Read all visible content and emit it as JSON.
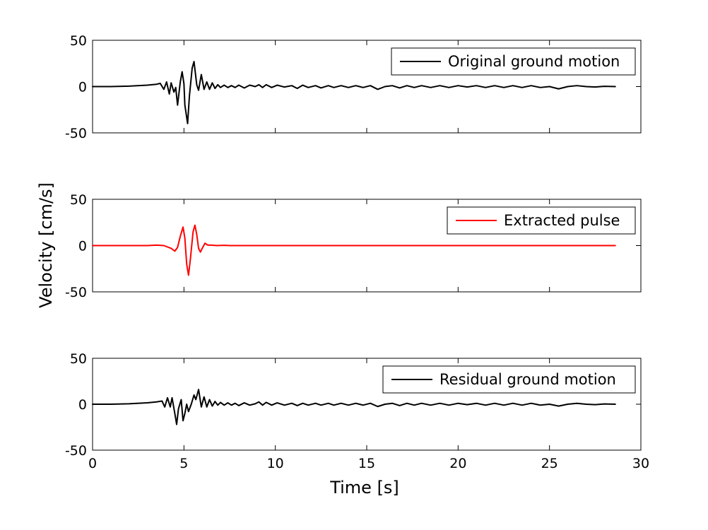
{
  "chart_data": {
    "type": "line",
    "shared_xlabel": "Time [s]",
    "shared_ylabel": "Velocity [cm/s]",
    "xlim": [
      0,
      30
    ],
    "xticks": [
      0,
      5,
      10,
      15,
      20,
      25,
      30
    ],
    "ylim": [
      -50,
      50
    ],
    "yticks": [
      -50,
      0,
      50
    ],
    "grid": false,
    "legend_position": "top-right",
    "panels": [
      {
        "series": [
          {
            "name": "Original ground motion",
            "color": "#000000",
            "points": [
              [
                0,
                0
              ],
              [
                1,
                0
              ],
              [
                2,
                0.5
              ],
              [
                3,
                1.5
              ],
              [
                3.5,
                2.5
              ],
              [
                3.7,
                3.5
              ],
              [
                3.9,
                -3
              ],
              [
                4.05,
                5
              ],
              [
                4.2,
                -8
              ],
              [
                4.3,
                4
              ],
              [
                4.45,
                -6
              ],
              [
                4.55,
                -1
              ],
              [
                4.65,
                -20
              ],
              [
                4.8,
                5
              ],
              [
                4.9,
                16
              ],
              [
                5.0,
                3
              ],
              [
                5.05,
                -20
              ],
              [
                5.2,
                -40
              ],
              [
                5.3,
                -10
              ],
              [
                5.45,
                20
              ],
              [
                5.55,
                27
              ],
              [
                5.7,
                2
              ],
              [
                5.8,
                -4
              ],
              [
                5.95,
                13
              ],
              [
                6.1,
                -3
              ],
              [
                6.25,
                5
              ],
              [
                6.4,
                -3
              ],
              [
                6.55,
                4
              ],
              [
                6.7,
                -2
              ],
              [
                6.85,
                2
              ],
              [
                7.0,
                -1
              ],
              [
                7.2,
                1.5
              ],
              [
                7.4,
                -1
              ],
              [
                7.6,
                1
              ],
              [
                7.8,
                -1
              ],
              [
                8.0,
                1.5
              ],
              [
                8.3,
                -1.5
              ],
              [
                8.6,
                1.5
              ],
              [
                8.9,
                0
              ],
              [
                9.1,
                2
              ],
              [
                9.3,
                -1
              ],
              [
                9.5,
                2
              ],
              [
                9.8,
                -1
              ],
              [
                10.1,
                1.5
              ],
              [
                10.5,
                -0.5
              ],
              [
                10.9,
                1
              ],
              [
                11.2,
                -2
              ],
              [
                11.5,
                1.5
              ],
              [
                11.8,
                -1
              ],
              [
                12.2,
                1
              ],
              [
                12.5,
                -1.5
              ],
              [
                12.9,
                1
              ],
              [
                13.2,
                -1
              ],
              [
                13.6,
                1
              ],
              [
                14,
                -1
              ],
              [
                14.4,
                1
              ],
              [
                14.8,
                -1
              ],
              [
                15.2,
                1
              ],
              [
                15.6,
                -3
              ],
              [
                16,
                0
              ],
              [
                16.4,
                1
              ],
              [
                16.8,
                -1.5
              ],
              [
                17.2,
                1
              ],
              [
                17.6,
                -1
              ],
              [
                18,
                1
              ],
              [
                18.5,
                -1
              ],
              [
                19,
                1
              ],
              [
                19.5,
                -1
              ],
              [
                20,
                1
              ],
              [
                20.5,
                -0.5
              ],
              [
                21,
                1
              ],
              [
                21.5,
                -1
              ],
              [
                22,
                1
              ],
              [
                22.5,
                -1
              ],
              [
                23,
                1
              ],
              [
                23.5,
                -1
              ],
              [
                24,
                1
              ],
              [
                24.5,
                -1
              ],
              [
                25,
                0
              ],
              [
                25.5,
                -2.5
              ],
              [
                26,
                0
              ],
              [
                26.5,
                1
              ],
              [
                27,
                0
              ],
              [
                27.5,
                -0.5
              ],
              [
                28,
                0.3
              ],
              [
                28.6,
                0
              ]
            ]
          }
        ]
      },
      {
        "series": [
          {
            "name": "Extracted pulse",
            "color": "#ff0000",
            "points": [
              [
                0,
                0
              ],
              [
                3,
                0
              ],
              [
                3.5,
                0.5
              ],
              [
                3.9,
                0
              ],
              [
                4.3,
                -3
              ],
              [
                4.5,
                -6
              ],
              [
                4.65,
                -2
              ],
              [
                4.8,
                10
              ],
              [
                4.95,
                20
              ],
              [
                5.05,
                8
              ],
              [
                5.15,
                -20
              ],
              [
                5.25,
                -32
              ],
              [
                5.35,
                -15
              ],
              [
                5.5,
                15
              ],
              [
                5.6,
                22
              ],
              [
                5.7,
                12
              ],
              [
                5.8,
                -3
              ],
              [
                5.9,
                -7
              ],
              [
                6.0,
                -3
              ],
              [
                6.15,
                2.5
              ],
              [
                6.3,
                0.5
              ],
              [
                6.5,
                0.5
              ],
              [
                6.8,
                0
              ],
              [
                7.2,
                0.3
              ],
              [
                7.5,
                0
              ],
              [
                28.6,
                0
              ]
            ]
          }
        ]
      },
      {
        "series": [
          {
            "name": "Residual ground motion",
            "color": "#000000",
            "points": [
              [
                0,
                0
              ],
              [
                1,
                0
              ],
              [
                2,
                0.5
              ],
              [
                3,
                1.5
              ],
              [
                3.5,
                2.5
              ],
              [
                3.8,
                3.5
              ],
              [
                3.95,
                -3
              ],
              [
                4.1,
                7
              ],
              [
                4.25,
                -3
              ],
              [
                4.35,
                7
              ],
              [
                4.5,
                -10
              ],
              [
                4.6,
                -22
              ],
              [
                4.7,
                -5
              ],
              [
                4.85,
                5
              ],
              [
                4.95,
                -18
              ],
              [
                5.05,
                -10
              ],
              [
                5.15,
                0
              ],
              [
                5.25,
                -8
              ],
              [
                5.4,
                0
              ],
              [
                5.55,
                10
              ],
              [
                5.65,
                5
              ],
              [
                5.8,
                16
              ],
              [
                5.95,
                -3
              ],
              [
                6.1,
                8
              ],
              [
                6.25,
                -3
              ],
              [
                6.4,
                5
              ],
              [
                6.55,
                -2
              ],
              [
                6.7,
                3
              ],
              [
                6.85,
                -1
              ],
              [
                7.0,
                2
              ],
              [
                7.2,
                -1
              ],
              [
                7.4,
                1.5
              ],
              [
                7.6,
                -1
              ],
              [
                7.8,
                1
              ],
              [
                8.0,
                -1.5
              ],
              [
                8.3,
                1.5
              ],
              [
                8.6,
                -1
              ],
              [
                8.9,
                0.5
              ],
              [
                9.1,
                2.5
              ],
              [
                9.3,
                -1
              ],
              [
                9.5,
                2
              ],
              [
                9.8,
                -1
              ],
              [
                10.1,
                1.5
              ],
              [
                10.5,
                -1
              ],
              [
                10.9,
                1
              ],
              [
                11.2,
                -1.5
              ],
              [
                11.5,
                1
              ],
              [
                11.8,
                -1
              ],
              [
                12.2,
                1
              ],
              [
                12.5,
                -1
              ],
              [
                12.9,
                1
              ],
              [
                13.2,
                -1
              ],
              [
                13.6,
                1
              ],
              [
                14,
                -1
              ],
              [
                14.4,
                1
              ],
              [
                14.8,
                -1
              ],
              [
                15.2,
                1
              ],
              [
                15.6,
                -2.5
              ],
              [
                16,
                0
              ],
              [
                16.4,
                1
              ],
              [
                16.8,
                -1.5
              ],
              [
                17.2,
                1
              ],
              [
                17.6,
                -1
              ],
              [
                18,
                1
              ],
              [
                18.5,
                -1
              ],
              [
                19,
                1
              ],
              [
                19.5,
                -1
              ],
              [
                20,
                1
              ],
              [
                20.5,
                -0.5
              ],
              [
                21,
                1
              ],
              [
                21.5,
                -1
              ],
              [
                22,
                1
              ],
              [
                22.5,
                -1
              ],
              [
                23,
                1
              ],
              [
                23.5,
                -1
              ],
              [
                24,
                1
              ],
              [
                24.5,
                -1
              ],
              [
                25,
                0
              ],
              [
                25.5,
                -2
              ],
              [
                26,
                0
              ],
              [
                26.5,
                1
              ],
              [
                27,
                0
              ],
              [
                27.5,
                -0.5
              ],
              [
                28,
                0.3
              ],
              [
                28.6,
                0
              ]
            ]
          }
        ]
      }
    ]
  }
}
